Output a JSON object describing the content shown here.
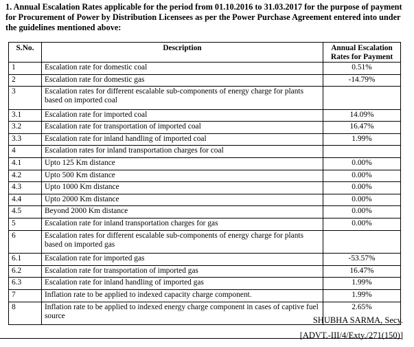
{
  "intro": "1. Annual Escalation Rates applicable for the period from 01.10.2016 to 31.03.2017 for the purpose of payment for Procurement of Power by Distribution Licensees as per the Power Purchase Agreement entered into under the guidelines mentioned above:",
  "table": {
    "headers": [
      "S.No.",
      "Description",
      "Annual Escalation Rates for Payment"
    ],
    "rows": [
      {
        "sno": "1",
        "desc": "Escalation rate for domestic coal",
        "rate": "0.51%"
      },
      {
        "sno": "2",
        "desc": "Escalation rate for domestic gas",
        "rate": "-14.79%"
      },
      {
        "sno": "3",
        "desc": "Escalation rates for different escalable sub-components of energy charge for plants based on imported coal",
        "rate": ""
      },
      {
        "sno": "3.1",
        "desc": "Escalation rate for imported coal",
        "rate": "14.09%"
      },
      {
        "sno": "3.2",
        "desc": "Escalation rate for transportation of imported coal",
        "rate": "16.47%"
      },
      {
        "sno": "3.3",
        "desc": "Escalation rate for inland handling of imported coal",
        "rate": "1.99%"
      },
      {
        "sno": "4",
        "desc": "Escalation rates for inland transportation charges for coal",
        "rate": ""
      },
      {
        "sno": "4.1",
        "desc": "Upto 125 Km distance",
        "rate": "0.00%"
      },
      {
        "sno": "4.2",
        "desc": "Upto 500 Km distance",
        "rate": "0.00%"
      },
      {
        "sno": "4.3",
        "desc": "Upto 1000 Km distance",
        "rate": "0.00%"
      },
      {
        "sno": "4.4",
        "desc": "Upto 2000 Km distance",
        "rate": "0.00%"
      },
      {
        "sno": "4.5",
        "desc": "Beyond 2000 Km distance",
        "rate": "0.00%"
      },
      {
        "sno": "5",
        "desc": "Escalation rate for inland transportation charges for gas",
        "rate": "0.00%"
      },
      {
        "sno": "6",
        "desc": "Escalation rates for different escalable sub-components of energy charge for plants based on imported gas",
        "rate": ""
      },
      {
        "sno": "6.1",
        "desc": "Escalation rate for imported gas",
        "rate": "-53.57%"
      },
      {
        "sno": "6.2",
        "desc": "Escalation rate for transportation of imported gas",
        "rate": "16.47%"
      },
      {
        "sno": "6.3",
        "desc": "Escalation rate for inland handling of imported gas",
        "rate": "1.99%"
      },
      {
        "sno": "7",
        "desc": "Inflation rate to be applied to indexed capacity charge component.",
        "rate": "1.99%"
      },
      {
        "sno": "8",
        "desc": "Inflation rate to be applied to indexed energy charge component in cases of captive fuel source",
        "rate": "2.65%"
      }
    ]
  },
  "signature": "SHUBHA SARMA, Secy.",
  "advt": "[ADVT.-III/4/Exty./271(150)]"
}
